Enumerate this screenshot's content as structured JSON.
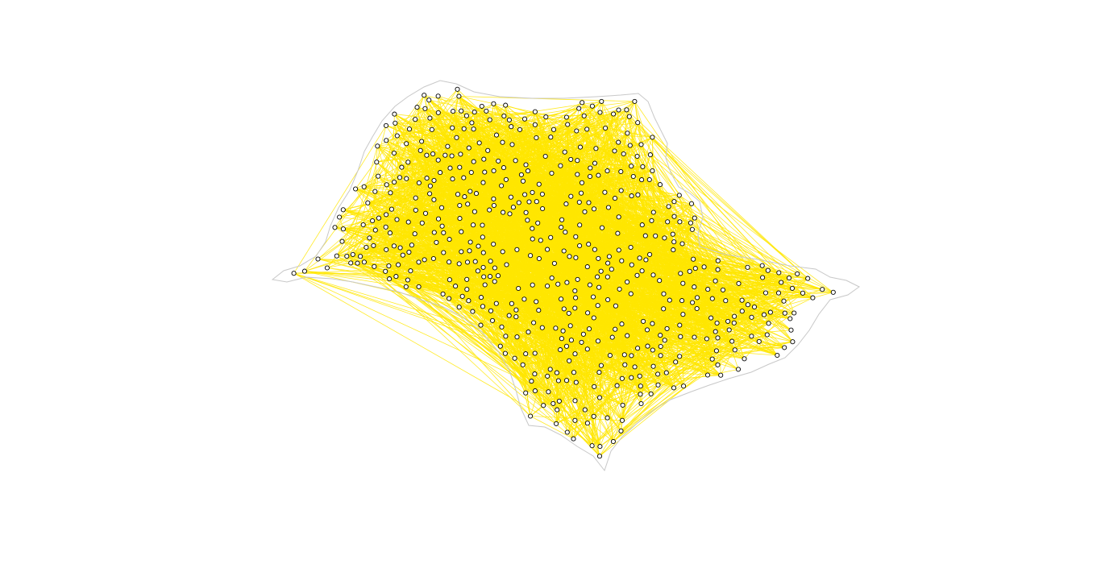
{
  "map": {
    "region_outline_color": "#c8c8c8",
    "edge_color": "#ffe600",
    "node_stroke_color": "#000000",
    "node_fill_color": "#ffffff",
    "background": "#ffffff",
    "marker_shape": "open-circle"
  }
}
